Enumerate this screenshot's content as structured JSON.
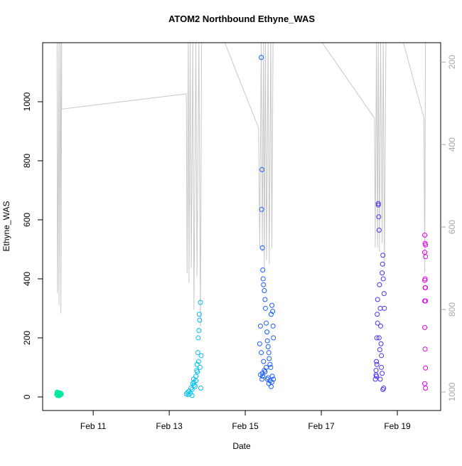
{
  "chart_data": {
    "type": "scatter",
    "title": "ATOM2 Northbound Ethyne_WAS",
    "x_label": "Date",
    "y_label": "Ethyne_WAS",
    "xlim": [
      9.67,
      20.14
    ],
    "ylim": [
      -46,
      1200
    ],
    "y2lim": [
      1045,
      153
    ],
    "xticks": [
      {
        "value": 11,
        "label": "Feb 11"
      },
      {
        "value": 13,
        "label": "Feb 13"
      },
      {
        "value": 15,
        "label": "Feb 15"
      },
      {
        "value": 17,
        "label": "Feb 17"
      },
      {
        "value": 19,
        "label": "Feb 19"
      }
    ],
    "yticks": [
      0,
      200,
      400,
      600,
      800,
      1000
    ],
    "y2ticks": [
      200,
      400,
      600,
      800,
      1000
    ],
    "series": [
      {
        "type": "scatter",
        "color": "#00e8a0",
        "x": [
          10.04,
          10.05,
          10.06,
          10.07,
          10.08,
          10.09,
          10.1,
          10.11,
          10.12,
          10.13,
          10.14,
          10.15,
          10.16,
          10.05,
          10.1
        ],
        "values": [
          8,
          12,
          5,
          15,
          10,
          7,
          14,
          9,
          11,
          6,
          13,
          8,
          10,
          16,
          4
        ]
      },
      {
        "type": "scatter",
        "color": "#00c0f0",
        "x": [
          13.45,
          13.48,
          13.5,
          13.52,
          13.55,
          13.57,
          13.6,
          13.62,
          13.64,
          13.66,
          13.68,
          13.7,
          13.72,
          13.73,
          13.75,
          13.76,
          13.78,
          13.8,
          13.82,
          13.84,
          13.7,
          13.74,
          13.77,
          13.79,
          13.81,
          13.6,
          13.65,
          13.83
        ],
        "values": [
          10,
          15,
          8,
          20,
          12,
          30,
          25,
          45,
          60,
          40,
          35,
          55,
          90,
          110,
          150,
          200,
          225,
          260,
          320,
          140,
          70,
          85,
          120,
          280,
          100,
          5,
          50,
          30
        ]
      },
      {
        "type": "scatter",
        "color": "#1a5cff",
        "x": [
          15.38,
          15.4,
          15.42,
          15.43,
          15.44,
          15.45,
          15.46,
          15.47,
          15.48,
          15.5,
          15.52,
          15.53,
          15.55,
          15.57,
          15.58,
          15.6,
          15.62,
          15.63,
          15.65,
          15.67,
          15.68,
          15.7,
          15.72,
          15.73,
          15.74,
          15.45,
          15.46,
          15.4,
          15.44,
          15.5,
          15.55,
          15.6,
          15.65,
          15.7,
          15.42,
          15.48,
          15.52,
          15.58,
          15.62,
          15.68,
          15.71,
          15.74
        ],
        "values": [
          180,
          240,
          1150,
          635,
          770,
          505,
          430,
          400,
          380,
          360,
          330,
          300,
          250,
          220,
          190,
          170,
          150,
          130,
          110,
          100,
          280,
          310,
          290,
          240,
          200,
          80,
          70,
          75,
          60,
          90,
          100,
          65,
          55,
          50,
          150,
          120,
          85,
          60,
          45,
          35,
          70,
          60
        ]
      },
      {
        "type": "scatter",
        "color": "#4b30f5",
        "x": [
          18.42,
          18.44,
          18.45,
          18.46,
          18.47,
          18.48,
          18.5,
          18.5,
          18.51,
          18.52,
          18.53,
          18.55,
          18.56,
          18.57,
          18.58,
          18.6,
          18.61,
          18.62,
          18.63,
          18.65,
          18.66,
          18.44,
          18.46,
          18.48,
          18.52,
          18.54,
          18.58,
          18.6,
          18.64,
          18.45,
          18.55,
          18.62
        ],
        "values": [
          60,
          90,
          120,
          200,
          280,
          330,
          655,
          650,
          610,
          565,
          380,
          300,
          240,
          180,
          140,
          420,
          450,
          480,
          400,
          350,
          300,
          75,
          110,
          250,
          200,
          160,
          100,
          80,
          30,
          70,
          60,
          25
        ]
      },
      {
        "type": "scatter",
        "color": "#e000e8",
        "x": [
          19.72,
          19.73,
          19.74,
          19.72,
          19.74,
          19.73,
          19.72,
          19.74,
          19.73,
          19.72,
          19.74,
          19.72,
          19.73,
          19.74,
          19.72,
          19.74
        ],
        "values": [
          548,
          520,
          515,
          490,
          475,
          400,
          395,
          370,
          370,
          325,
          325,
          235,
          162,
          98,
          45,
          30
        ]
      },
      {
        "type": "line",
        "axis": "y2",
        "color": "#c8c8c8",
        "x": [
          10.05,
          10.06,
          10.1,
          10.1,
          10.14,
          10.15,
          10.17,
          10.17,
          13.45,
          13.47,
          13.5,
          13.52,
          13.55,
          13.58,
          13.62,
          13.65,
          13.7,
          13.73,
          13.78,
          13.82,
          13.85,
          14.45,
          15.35,
          15.38,
          15.42,
          15.45,
          15.48,
          15.5,
          15.53,
          15.56,
          15.6,
          15.63,
          15.67,
          15.7,
          15.73,
          17.0,
          18.4,
          18.42,
          18.45,
          18.48,
          18.5,
          18.53,
          18.56,
          18.6,
          18.63,
          18.66,
          18.7,
          19.15,
          19.7,
          19.72,
          19.74
        ],
        "values": [
          150,
          760,
          150,
          790,
          150,
          810,
          150,
          314,
          277,
          712,
          150,
          735,
          150,
          700,
          150,
          800,
          150,
          720,
          150,
          840,
          150,
          150,
          360,
          650,
          150,
          660,
          150,
          700,
          150,
          680,
          150,
          690,
          150,
          650,
          150,
          150,
          336,
          650,
          150,
          650,
          150,
          660,
          150,
          640,
          150,
          700,
          150,
          150,
          336,
          710,
          150
        ]
      }
    ]
  }
}
